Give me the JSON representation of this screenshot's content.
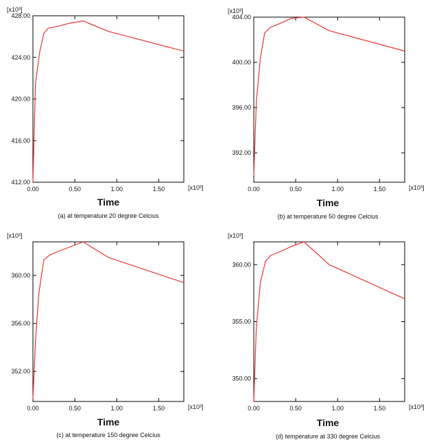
{
  "figure": {
    "line_color": "#e8322c",
    "axis_color": "#000000",
    "x_multiplier": "[x10³]",
    "y_multiplier": "[x10³]"
  },
  "chart_data": [
    {
      "type": "line",
      "caption": "(a) at temperature 20 degree Celcius",
      "xlabel": "Time",
      "ylabel": "",
      "x_multiplier": "[x10³]",
      "y_multiplier": "[x10³]",
      "xlim": [
        0,
        1.8
      ],
      "ylim": [
        412,
        428
      ],
      "x_ticks": [
        "0.00",
        "0.50",
        "1.00",
        "1.50"
      ],
      "x_tick_values": [
        0,
        0.5,
        1.0,
        1.5
      ],
      "y_ticks": [
        "412.00",
        "416.00",
        "420.00",
        "424.00",
        "428.00"
      ],
      "y_tick_values": [
        412,
        416,
        420,
        424,
        428
      ],
      "x": [
        0.0,
        0.03,
        0.08,
        0.13,
        0.18,
        0.3,
        0.45,
        0.6,
        0.9,
        1.8
      ],
      "y": [
        412.0,
        421.5,
        424.5,
        426.3,
        426.8,
        427.0,
        427.3,
        427.5,
        426.5,
        424.6
      ]
    },
    {
      "type": "line",
      "caption": "(b) at temperature 50 degree Celcius",
      "xlabel": "Time",
      "ylabel": "",
      "x_multiplier": "[x10³]",
      "y_multiplier": "[x10³]",
      "xlim": [
        0,
        1.8
      ],
      "ylim": [
        389.4,
        404
      ],
      "x_ticks": [
        "0.00",
        "0.50",
        "1.00",
        "1.50"
      ],
      "x_tick_values": [
        0,
        0.5,
        1.0,
        1.5
      ],
      "y_ticks": [
        "392.00",
        "396.00",
        "400.00",
        "404.00"
      ],
      "y_tick_values": [
        392,
        396,
        400,
        404
      ],
      "x": [
        0.0,
        0.03,
        0.08,
        0.13,
        0.2,
        0.3,
        0.45,
        0.6,
        0.9,
        1.8
      ],
      "y": [
        390.0,
        396.5,
        400.5,
        402.6,
        403.1,
        403.4,
        403.9,
        404.0,
        402.8,
        401.0
      ]
    },
    {
      "type": "line",
      "caption": "(c) at temperature 150 degree Celcius",
      "xlabel": "Time",
      "ylabel": "",
      "x_multiplier": "[x10³]",
      "y_multiplier": "[x10³]",
      "xlim": [
        0,
        1.8
      ],
      "ylim": [
        349.5,
        362.8
      ],
      "x_ticks": [
        "0.00",
        "0.50",
        "1.00",
        "1.50"
      ],
      "x_tick_values": [
        0,
        0.5,
        1.0,
        1.5
      ],
      "y_ticks": [
        "352.00",
        "356.00",
        "360.00"
      ],
      "y_tick_values": [
        352,
        356,
        360
      ],
      "x": [
        0.0,
        0.03,
        0.07,
        0.13,
        0.2,
        0.3,
        0.45,
        0.6,
        0.9,
        1.8
      ],
      "y": [
        349.7,
        354.5,
        358.5,
        361.3,
        361.7,
        362.0,
        362.4,
        362.8,
        361.5,
        359.4
      ]
    },
    {
      "type": "line",
      "caption": "(d) temperature at 330 degree Celcius",
      "xlabel": "Time",
      "ylabel": "",
      "x_multiplier": "[x10³]",
      "y_multiplier": "[x10³]",
      "xlim": [
        0,
        1.8
      ],
      "ylim": [
        348,
        362
      ],
      "x_ticks": [
        "0.00",
        "0.50",
        "1.00",
        "1.50"
      ],
      "x_tick_values": [
        0,
        0.5,
        1.0,
        1.5
      ],
      "y_ticks": [
        "350.00",
        "355.00",
        "360.00"
      ],
      "y_tick_values": [
        350,
        355,
        360
      ],
      "x": [
        0.0,
        0.03,
        0.08,
        0.14,
        0.2,
        0.3,
        0.45,
        0.6,
        0.9,
        1.8
      ],
      "y": [
        348.0,
        354.5,
        358.5,
        360.3,
        360.8,
        361.1,
        361.6,
        362.0,
        360.0,
        357.0
      ]
    }
  ]
}
